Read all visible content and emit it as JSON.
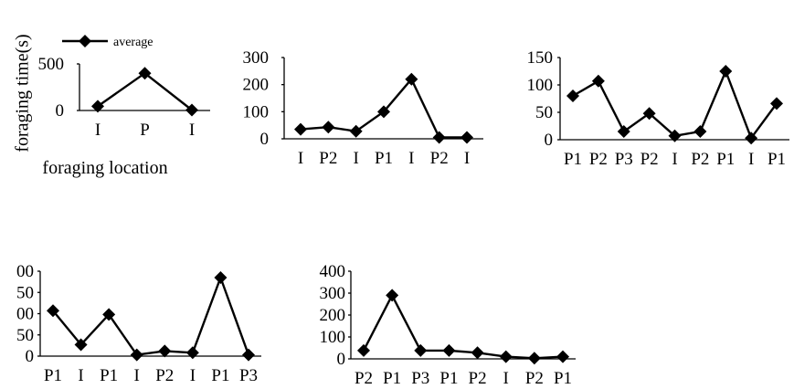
{
  "y_axis_label": "foraging time(s)",
  "x_axis_label": "foraging location",
  "legend_label": "average",
  "chart_data": [
    {
      "type": "line",
      "categories": [
        "I",
        "P",
        "I"
      ],
      "values": [
        45,
        400,
        5
      ],
      "yticks": [
        "0",
        "500"
      ],
      "ylim": [
        0,
        500
      ],
      "legend": "top-left"
    },
    {
      "type": "line",
      "categories": [
        "I",
        "P2",
        "I",
        "P1",
        "I",
        "P2",
        "I"
      ],
      "values": [
        35,
        43,
        28,
        100,
        220,
        5,
        5
      ],
      "yticks": [
        "0",
        "100",
        "200",
        "300"
      ],
      "ylim": [
        0,
        300
      ]
    },
    {
      "type": "line",
      "categories": [
        "P1",
        "P2",
        "P3",
        "P2",
        "I",
        "P2",
        "P1",
        "I",
        "P1"
      ],
      "values": [
        80,
        107,
        15,
        48,
        7,
        15,
        125,
        3,
        66
      ],
      "yticks": [
        "0",
        "50",
        "100",
        "150"
      ],
      "ylim": [
        0,
        150
      ]
    },
    {
      "type": "line",
      "categories": [
        "P1",
        "I",
        "P1",
        "I",
        "P2",
        "I",
        "P1",
        "P3"
      ],
      "values": [
        107,
        27,
        98,
        3,
        12,
        8,
        185,
        3
      ],
      "yticks": [
        "0",
        "50",
        "00",
        "50",
        "00"
      ],
      "ylim": [
        0,
        200
      ]
    },
    {
      "type": "line",
      "categories": [
        "P2",
        "P1",
        "P3",
        "P1",
        "P2",
        "I",
        "P2",
        "P1"
      ],
      "values": [
        38,
        290,
        38,
        38,
        28,
        10,
        3,
        10
      ],
      "yticks": [
        "0",
        "100",
        "200",
        "300",
        "400"
      ],
      "ylim": [
        0,
        400
      ]
    }
  ]
}
